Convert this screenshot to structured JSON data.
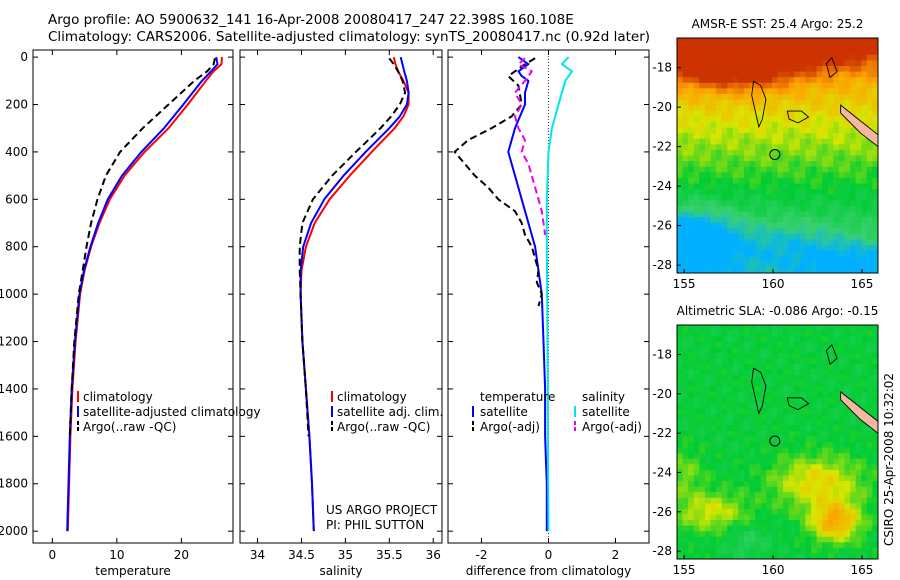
{
  "header": {
    "line1": "Argo profile: AO 5900632_141 16-Apr-2008 20080417_247 22.398S 160.108E",
    "line2": "Climatology: CARS2006. Satellite-adjusted climatology: synTS_20080417.nc (0.92d later)"
  },
  "side_label": "CSIRO 25-Apr-2008 10:32:02",
  "colors": {
    "climatology": "#ff0000",
    "satellite": "#0000ff",
    "argo": "#000000",
    "sat_salinity": "#00e5ee",
    "argo_salinity_adj": "#ee00ee"
  },
  "chart_data": [
    {
      "type": "line",
      "xlabel": "temperature",
      "xlim": [
        -3,
        28
      ],
      "ylim": [
        2050,
        0
      ],
      "xticks": [
        0,
        10,
        20
      ],
      "yticks": [
        0,
        200,
        400,
        600,
        800,
        1000,
        1200,
        1400,
        1600,
        1800,
        2000
      ],
      "legend": [
        "climatology",
        "satellite-adjusted climatology",
        "Argo(..raw -QC)"
      ],
      "series": [
        {
          "name": "climatology",
          "style": "solid",
          "color": "#ff0000",
          "y": [
            0,
            30,
            60,
            100,
            200,
            300,
            400,
            500,
            600,
            700,
            800,
            900,
            1000,
            1200,
            1400,
            1600,
            1800,
            2000
          ],
          "x": [
            26.3,
            26.2,
            25.0,
            23.8,
            21.0,
            18.0,
            14.3,
            11.2,
            8.9,
            7.3,
            6.0,
            5.0,
            4.3,
            3.6,
            3.1,
            2.8,
            2.6,
            2.4
          ]
        },
        {
          "name": "satellite-adjusted climatology",
          "style": "solid",
          "color": "#0000ff",
          "y": [
            0,
            30,
            60,
            100,
            200,
            300,
            400,
            500,
            600,
            700,
            800,
            900,
            1000,
            1200,
            1400,
            1600,
            1800,
            2000
          ],
          "x": [
            25.4,
            25.6,
            24.6,
            23.2,
            20.3,
            17.3,
            13.8,
            10.8,
            8.6,
            7.1,
            5.9,
            4.9,
            4.2,
            3.5,
            3.0,
            2.7,
            2.5,
            2.3
          ]
        },
        {
          "name": "Argo(..raw -QC)",
          "style": "dashed",
          "color": "#000000",
          "y": [
            5,
            30,
            60,
            100,
            200,
            300,
            400,
            500,
            600,
            700,
            800,
            900,
            1000,
            1200,
            1400,
            1600
          ],
          "x": [
            25.2,
            25.0,
            24.0,
            22.0,
            18.0,
            14.0,
            10.5,
            8.3,
            7.0,
            6.0,
            5.3,
            4.7,
            4.1,
            3.4,
            3.0,
            2.7
          ]
        }
      ]
    },
    {
      "type": "line",
      "xlabel": "salinity",
      "xlim": [
        33.8,
        36.1
      ],
      "ylim": [
        2050,
        0
      ],
      "xticks": [
        34,
        34.5,
        35,
        35.5,
        36
      ],
      "legend": [
        "climatology",
        "satellite adj. clim.",
        "Argo(..raw -QC)"
      ],
      "annotation": [
        "US ARGO PROJECT",
        "PI: PHIL SUTTON"
      ],
      "series": [
        {
          "name": "climatology",
          "style": "solid",
          "color": "#ff0000",
          "y": [
            0,
            30,
            60,
            100,
            150,
            200,
            250,
            300,
            400,
            500,
            600,
            700,
            800,
            900,
            1000,
            1200,
            1400,
            1600,
            1800,
            2000
          ],
          "x": [
            35.55,
            35.57,
            35.6,
            35.66,
            35.72,
            35.72,
            35.66,
            35.56,
            35.3,
            35.05,
            34.82,
            34.65,
            34.55,
            34.5,
            34.49,
            34.51,
            34.55,
            34.59,
            34.62,
            34.64
          ]
        },
        {
          "name": "satellite adj. clim.",
          "style": "solid",
          "color": "#0000ff",
          "y": [
            0,
            30,
            60,
            100,
            150,
            200,
            250,
            300,
            400,
            500,
            600,
            700,
            800,
            900,
            1000,
            1200,
            1400,
            1600,
            1800,
            2000
          ],
          "x": [
            35.63,
            35.65,
            35.67,
            35.7,
            35.72,
            35.7,
            35.62,
            35.5,
            35.23,
            34.98,
            34.76,
            34.61,
            34.52,
            34.49,
            34.49,
            34.51,
            34.55,
            34.59,
            34.62,
            34.64
          ]
        },
        {
          "name": "Argo(..raw -QC)",
          "style": "dashed",
          "color": "#000000",
          "y": [
            5,
            30,
            60,
            100,
            150,
            200,
            250,
            300,
            400,
            500,
            600,
            700,
            800,
            900,
            1000,
            1200,
            1400,
            1600
          ],
          "x": [
            35.5,
            35.55,
            35.6,
            35.65,
            35.68,
            35.62,
            35.52,
            35.4,
            35.12,
            34.85,
            34.63,
            34.51,
            34.48,
            34.48,
            34.49,
            34.51,
            34.55,
            34.58
          ]
        }
      ]
    },
    {
      "type": "line",
      "xlabel": "difference from climatology",
      "xlim": [
        -3.0,
        3.0
      ],
      "ylim": [
        2050,
        0
      ],
      "xticks": [
        -2,
        0,
        2
      ],
      "legend_titles": [
        "temperature",
        "salinity"
      ],
      "legend": [
        "satellite",
        "Argo(-adj)",
        "satellite",
        "Argo(-adj)"
      ],
      "series": [
        {
          "name": "temperature satellite",
          "style": "solid",
          "color": "#0000ff",
          "y": [
            0,
            30,
            60,
            80,
            100,
            150,
            200,
            300,
            400,
            500,
            600,
            700,
            800,
            1000,
            1200,
            1400,
            1600,
            1800,
            2000
          ],
          "x": [
            -0.9,
            -0.6,
            -0.9,
            -0.8,
            -0.6,
            -0.7,
            -0.7,
            -1.0,
            -1.2,
            -1.0,
            -0.8,
            -0.6,
            -0.4,
            -0.2,
            -0.15,
            -0.1,
            -0.1,
            -0.05,
            -0.05
          ]
        },
        {
          "name": "temperature Argo(-adj)",
          "style": "dashed",
          "color": "#000000",
          "y": [
            5,
            30,
            80,
            120,
            200,
            250,
            300,
            350,
            400,
            450,
            500,
            550,
            600,
            650,
            700,
            750,
            800,
            850,
            900,
            950,
            1000,
            1050
          ],
          "x": [
            -0.4,
            -0.7,
            -1.2,
            -0.9,
            -0.8,
            -1.1,
            -1.7,
            -2.4,
            -2.8,
            -2.5,
            -2.2,
            -1.8,
            -1.5,
            -1.0,
            -0.8,
            -0.7,
            -0.5,
            -0.4,
            -0.3,
            -0.35,
            -0.2,
            -0.3
          ]
        },
        {
          "name": "salinity satellite",
          "style": "solid",
          "color": "#00e5ee",
          "y": [
            0,
            30,
            60,
            100,
            150,
            200,
            300,
            400,
            600,
            800,
            1000,
            1200,
            1400,
            1600,
            1800,
            2000
          ],
          "x": [
            0.6,
            0.4,
            0.7,
            0.5,
            0.4,
            0.3,
            0.1,
            0.0,
            -0.05,
            -0.05,
            -0.04,
            -0.03,
            -0.02,
            -0.02,
            -0.01,
            0.0
          ]
        },
        {
          "name": "salinity Argo(-adj)",
          "style": "dashed",
          "color": "#ee00ee",
          "y": [
            5,
            30,
            60,
            100,
            150,
            200,
            250,
            300,
            350,
            400,
            450,
            500,
            550,
            600,
            650,
            700,
            750
          ],
          "x": [
            -0.7,
            -0.9,
            -0.5,
            -0.7,
            -1.0,
            -0.8,
            -1.0,
            -0.9,
            -0.7,
            -0.8,
            -0.6,
            -0.5,
            -0.4,
            -0.3,
            -0.2,
            -0.15,
            -0.1
          ]
        }
      ]
    },
    {
      "type": "heatmap",
      "title": "AMSR-E SST: 25.4 Argo: 25.2",
      "xlim": [
        154.6,
        165.9
      ],
      "ylim": [
        -28.4,
        -16.5
      ],
      "xticks": [
        155,
        160,
        165
      ],
      "yticks": [
        -18,
        -20,
        -22,
        -24,
        -26,
        -28
      ],
      "colormap": [
        "#00b0ff",
        "#3ad06e",
        "#00cc33",
        "#d8e600",
        "#ffa000",
        "#cc3300"
      ],
      "fields": [
        {
          "x": 158.5,
          "y": -17.5,
          "value": 1.0,
          "sx": 3.0,
          "sy": 1.3
        },
        {
          "x": 156.0,
          "y": -17.0,
          "value": 0.85,
          "sx": 2.5,
          "sy": 1.4
        },
        {
          "x": 163.5,
          "y": -16.8,
          "value": 0.6,
          "sx": 3.0,
          "sy": 1.2
        },
        {
          "x": 155.5,
          "y": -26.8,
          "value": -0.9,
          "sx": 2.5,
          "sy": 1.5
        },
        {
          "x": 161.0,
          "y": -27.0,
          "value": -0.3,
          "sx": 3.0,
          "sy": 1.2
        },
        {
          "x": 164.5,
          "y": -28.0,
          "value": -0.4,
          "sx": 2.5,
          "sy": 1.0
        }
      ],
      "marker": {
        "x": 160.1,
        "y": -22.4
      }
    },
    {
      "type": "heatmap",
      "title": "Altimetric SLA: -0.086 Argo: -0.15",
      "xlim": [
        154.6,
        165.9
      ],
      "ylim": [
        -28.4,
        -16.5
      ],
      "xticks": [
        155,
        160,
        165
      ],
      "yticks": [
        -18,
        -20,
        -22,
        -24,
        -26,
        -28
      ],
      "colormap": [
        "#00b0ff",
        "#3ad06e",
        "#00cc33",
        "#d8e600",
        "#ffa000",
        "#cc3300"
      ],
      "fields": [
        {
          "x": 162.5,
          "y": -24.5,
          "value": 0.55,
          "sx": 2.5,
          "sy": 1.3
        },
        {
          "x": 163.5,
          "y": -26.5,
          "value": 0.8,
          "sx": 1.4,
          "sy": 1.0
        },
        {
          "x": 156.5,
          "y": -26.0,
          "value": 0.45,
          "sx": 2.0,
          "sy": 1.0
        },
        {
          "x": 155.0,
          "y": -24.0,
          "value": 0.25,
          "sx": 1.2,
          "sy": 1.2
        },
        {
          "x": 158.5,
          "y": -27.5,
          "value": -0.2,
          "sx": 1.2,
          "sy": 0.8
        }
      ],
      "marker": {
        "x": 160.1,
        "y": -22.4
      }
    }
  ]
}
